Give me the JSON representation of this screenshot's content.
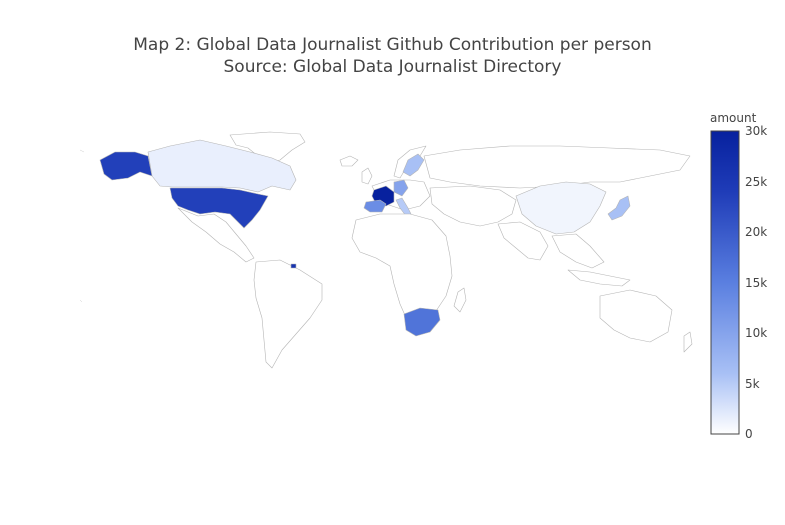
{
  "title": {
    "line1": "Map 2: Global Data Journalist Github Contribution per person",
    "line2": "Source: Global Data Journalist Directory"
  },
  "colorbar": {
    "title": "amount",
    "min": 0,
    "max": 30000,
    "ticks": [
      "30k",
      "25k",
      "20k",
      "15k",
      "10k",
      "5k",
      "0"
    ],
    "colorscale": [
      "#ffffff",
      "#a8c0f5",
      "#5a7fe0",
      "#1f3cb8",
      "#07219e"
    ]
  },
  "chart_data": {
    "type": "choropleth",
    "value_label": "amount",
    "regions": [
      {
        "name": "United States",
        "value": 23500
      },
      {
        "name": "France",
        "value": 30000
      },
      {
        "name": "Spain",
        "value": 13000
      },
      {
        "name": "South Africa",
        "value": 16500
      },
      {
        "name": "Germany",
        "value": 10000
      },
      {
        "name": "Sweden",
        "value": 6000
      },
      {
        "name": "Italy",
        "value": 5000
      },
      {
        "name": "Japan",
        "value": 6000
      },
      {
        "name": "Canada",
        "value": 1500
      },
      {
        "name": "China",
        "value": 1000
      },
      {
        "name": "Trinidad and Tobago",
        "value": 26000
      }
    ]
  }
}
